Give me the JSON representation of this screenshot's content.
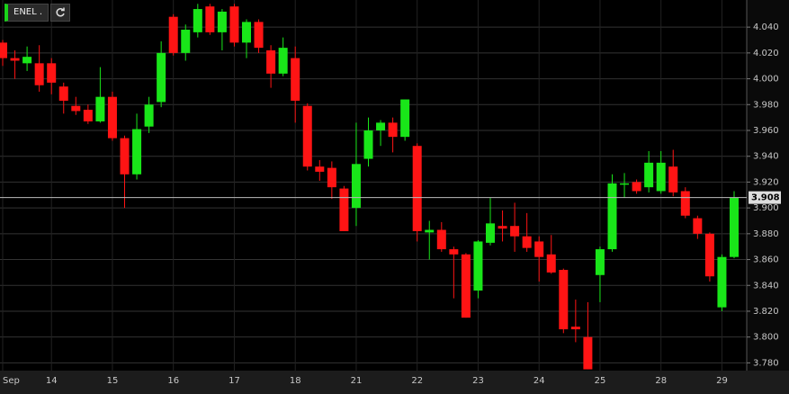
{
  "chart_data": {
    "type": "candlestick",
    "symbol": "ENEL .",
    "categories": [
      "Sep",
      null,
      null,
      null,
      "14",
      null,
      null,
      null,
      null,
      "15",
      null,
      null,
      null,
      null,
      "16",
      null,
      null,
      null,
      null,
      "17",
      null,
      null,
      null,
      null,
      "18",
      null,
      null,
      null,
      null,
      "21",
      null,
      null,
      null,
      null,
      "22",
      null,
      null,
      null,
      null,
      "23",
      null,
      null,
      null,
      null,
      "24",
      null,
      null,
      null,
      null,
      "25",
      null,
      null,
      null,
      null,
      "28",
      null,
      null,
      null,
      null,
      "29",
      null
    ],
    "open": [
      4.028,
      4.016,
      4.012,
      4.012,
      4.012,
      3.994,
      3.979,
      3.976,
      3.967,
      3.986,
      3.954,
      3.926,
      3.963,
      3.982,
      4.048,
      4.02,
      4.036,
      4.056,
      4.036,
      4.056,
      4.028,
      4.044,
      4.022,
      4.004,
      4.016,
      3.979,
      3.932,
      3.931,
      3.915,
      3.9,
      3.938,
      3.96,
      3.966,
      3.955,
      3.948,
      3.881,
      3.883,
      3.868,
      3.864,
      3.836,
      3.873,
      3.886,
      3.886,
      3.878,
      3.874,
      3.864,
      3.852,
      3.808,
      3.8,
      3.848,
      3.868,
      3.918,
      3.92,
      3.916,
      3.913,
      3.932,
      3.913,
      3.892,
      3.88,
      3.823,
      3.862
    ],
    "high": [
      4.03,
      4.022,
      4.025,
      4.026,
      4.016,
      3.997,
      3.986,
      3.98,
      4.009,
      3.99,
      3.956,
      3.973,
      3.986,
      4.029,
      4.05,
      4.042,
      4.058,
      4.058,
      4.054,
      4.058,
      4.046,
      4.046,
      4.026,
      4.032,
      4.025,
      3.981,
      3.937,
      3.936,
      3.917,
      3.966,
      3.97,
      3.968,
      3.97,
      3.984,
      3.95,
      3.89,
      3.889,
      3.87,
      3.865,
      3.875,
      3.908,
      3.898,
      3.904,
      3.896,
      3.878,
      3.879,
      3.853,
      3.829,
      3.827,
      3.87,
      3.926,
      3.927,
      3.922,
      3.944,
      3.944,
      3.945,
      3.916,
      3.894,
      3.881,
      3.864,
      3.913
    ],
    "low": [
      4.01,
      4.0,
      4.006,
      3.99,
      3.988,
      3.973,
      3.972,
      3.965,
      3.966,
      3.952,
      3.9,
      3.922,
      3.958,
      3.978,
      4.018,
      4.014,
      4.032,
      4.034,
      4.022,
      4.025,
      4.016,
      4.02,
      3.993,
      4.002,
      3.966,
      3.929,
      3.921,
      3.907,
      3.882,
      3.886,
      3.932,
      3.948,
      3.943,
      3.952,
      3.874,
      3.86,
      3.866,
      3.83,
      3.815,
      3.83,
      3.871,
      3.874,
      3.866,
      3.866,
      3.843,
      3.849,
      3.803,
      3.796,
      3.775,
      3.827,
      3.866,
      3.908,
      3.911,
      3.912,
      3.911,
      3.909,
      3.892,
      3.876,
      3.843,
      3.82,
      3.861
    ],
    "close": [
      4.016,
      4.014,
      4.017,
      3.995,
      3.997,
      3.983,
      3.975,
      3.967,
      3.986,
      3.954,
      3.926,
      3.961,
      3.98,
      4.02,
      4.02,
      4.038,
      4.054,
      4.036,
      4.052,
      4.028,
      4.044,
      4.024,
      4.004,
      4.024,
      3.983,
      3.932,
      3.928,
      3.916,
      3.882,
      3.934,
      3.96,
      3.966,
      3.955,
      3.984,
      3.882,
      3.883,
      3.868,
      3.864,
      3.815,
      3.874,
      3.888,
      3.884,
      3.878,
      3.869,
      3.862,
      3.85,
      3.806,
      3.806,
      3.775,
      3.868,
      3.919,
      3.919,
      3.913,
      3.935,
      3.935,
      3.912,
      3.894,
      3.88,
      3.847,
      3.862,
      3.908
    ],
    "up_color": "#19e619",
    "down_color": "#ff1414",
    "ylim": [
      3.774,
      4.061
    ],
    "yticks": [
      {
        "value": 3.78,
        "label": "3.780"
      },
      {
        "value": 3.8,
        "label": "3.800"
      },
      {
        "value": 3.82,
        "label": "3.820"
      },
      {
        "value": 3.84,
        "label": "3.840"
      },
      {
        "value": 3.86,
        "label": "3.860"
      },
      {
        "value": 3.88,
        "label": "3.880"
      },
      {
        "value": 3.9,
        "label": "3.900"
      },
      {
        "value": 3.92,
        "label": "3.920"
      },
      {
        "value": 3.94,
        "label": "3.940"
      },
      {
        "value": 3.96,
        "label": "3.960"
      },
      {
        "value": 3.98,
        "label": "3.980"
      },
      {
        "value": 4.0,
        "label": "4.000"
      },
      {
        "value": 4.02,
        "label": "4.020"
      },
      {
        "value": 4.04,
        "label": "4.040"
      }
    ],
    "last_price": 3.908,
    "grid": true
  }
}
